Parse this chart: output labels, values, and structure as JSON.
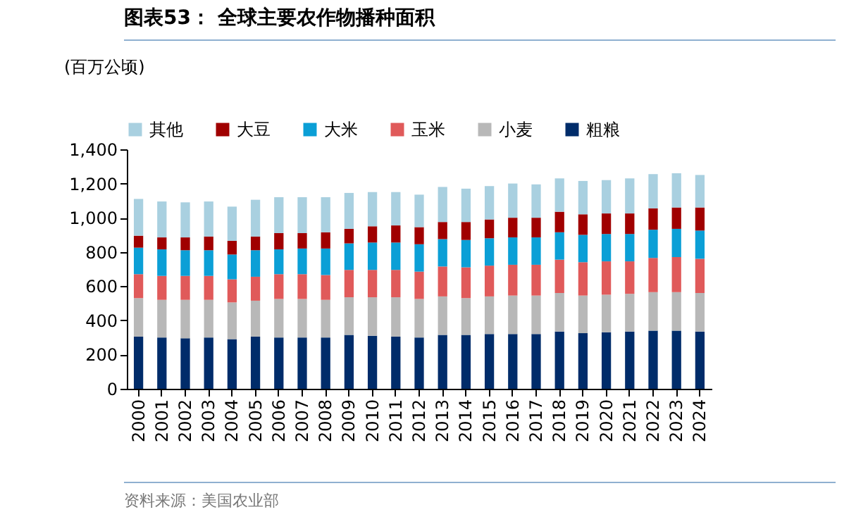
{
  "chart_data": {
    "type": "bar",
    "title": "图表53：  全球主要农作物播种面积",
    "ylabel": "(百万公顷)",
    "annotations": [
      "资料来源：美国农业部"
    ],
    "categories": [
      "2000",
      "2001",
      "2002",
      "2003",
      "2004",
      "2005",
      "2006",
      "2007",
      "2008",
      "2009",
      "2010",
      "2011",
      "2012",
      "2013",
      "2014",
      "2015",
      "2016",
      "2017",
      "2018",
      "2019",
      "2020",
      "2021",
      "2022",
      "2023",
      "2024"
    ],
    "stacked": true,
    "legend": "top",
    "grid": false,
    "ylim": [
      0,
      1400
    ],
    "yticks": [
      0,
      200,
      400,
      600,
      800,
      {
        "value": 1000,
        "label": "1,000"
      },
      {
        "value": 1200,
        "label": "1,200"
      },
      {
        "value": 1400,
        "label": "1,400"
      }
    ],
    "series": [
      {
        "name": "粗粮",
        "color": "#002c6a",
        "values": [
          305,
          300,
          295,
          300,
          290,
          305,
          300,
          300,
          300,
          315,
          310,
          305,
          300,
          315,
          315,
          320,
          320,
          320,
          335,
          325,
          330,
          335,
          340,
          340,
          335
        ]
      },
      {
        "name": "小麦",
        "color": "#b8b8b8",
        "values": [
          225,
          220,
          225,
          220,
          215,
          210,
          225,
          225,
          220,
          220,
          225,
          230,
          225,
          225,
          215,
          220,
          225,
          225,
          225,
          220,
          220,
          220,
          225,
          225,
          225
        ]
      },
      {
        "name": "玉米",
        "color": "#e05a5a",
        "values": [
          140,
          140,
          140,
          140,
          135,
          140,
          145,
          145,
          145,
          160,
          160,
          160,
          160,
          175,
          180,
          180,
          180,
          180,
          195,
          195,
          195,
          190,
          200,
          205,
          200
        ]
      },
      {
        "name": "大米",
        "color": "#0b9fd6",
        "values": [
          155,
          155,
          150,
          150,
          145,
          155,
          145,
          150,
          155,
          155,
          160,
          160,
          160,
          160,
          160,
          160,
          160,
          160,
          160,
          160,
          160,
          160,
          165,
          165,
          165
        ]
      },
      {
        "name": "大豆",
        "color": "#a00000",
        "values": [
          70,
          70,
          75,
          80,
          80,
          80,
          95,
          90,
          95,
          85,
          95,
          100,
          100,
          100,
          105,
          110,
          115,
          115,
          120,
          120,
          120,
          120,
          125,
          125,
          135
        ]
      },
      {
        "name": "其他",
        "color": "#a9d0e0",
        "values": [
          215,
          210,
          205,
          205,
          200,
          215,
          210,
          210,
          205,
          210,
          200,
          195,
          190,
          205,
          195,
          195,
          200,
          195,
          195,
          195,
          195,
          205,
          200,
          200,
          190
        ]
      }
    ]
  }
}
